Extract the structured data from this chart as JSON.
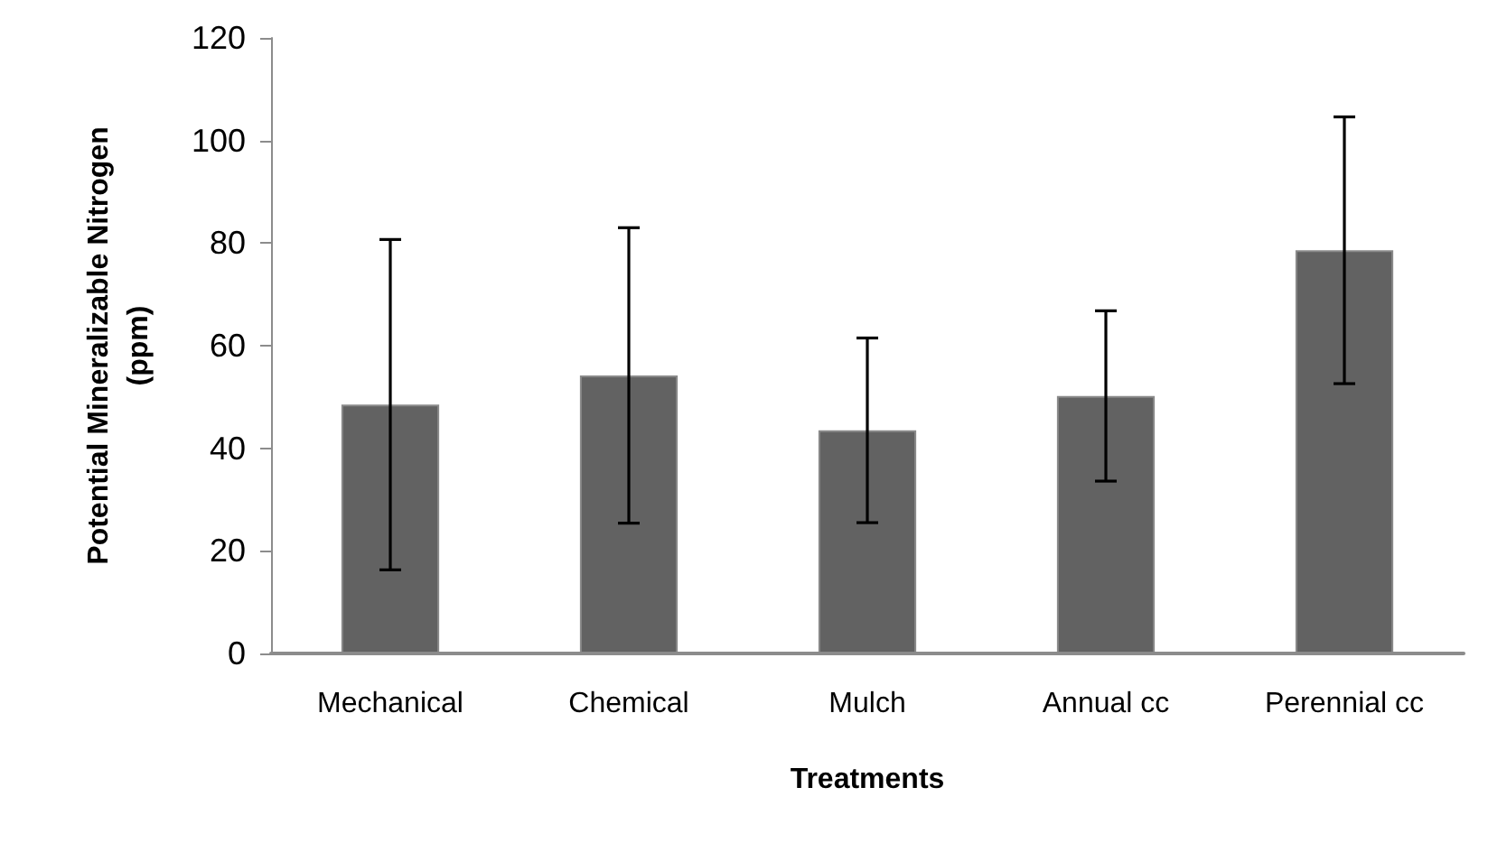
{
  "chart_data": {
    "type": "bar",
    "xlabel": "Treatments",
    "ylabel": "Potential Mineralizable Nitrogen (ppm)",
    "categories": [
      "Mechanical",
      "Chemical",
      "Mulch",
      "Annual cc",
      "Perennial cc"
    ],
    "values": [
      48.5,
      54.2,
      43.5,
      50.2,
      78.6
    ],
    "errors": [
      32.2,
      28.8,
      18,
      16.6,
      26
    ],
    "color": "#626262",
    "ylim": [
      0,
      120
    ],
    "yticks": [
      0,
      20,
      40,
      60,
      80,
      100,
      120
    ],
    "grid": false
  }
}
